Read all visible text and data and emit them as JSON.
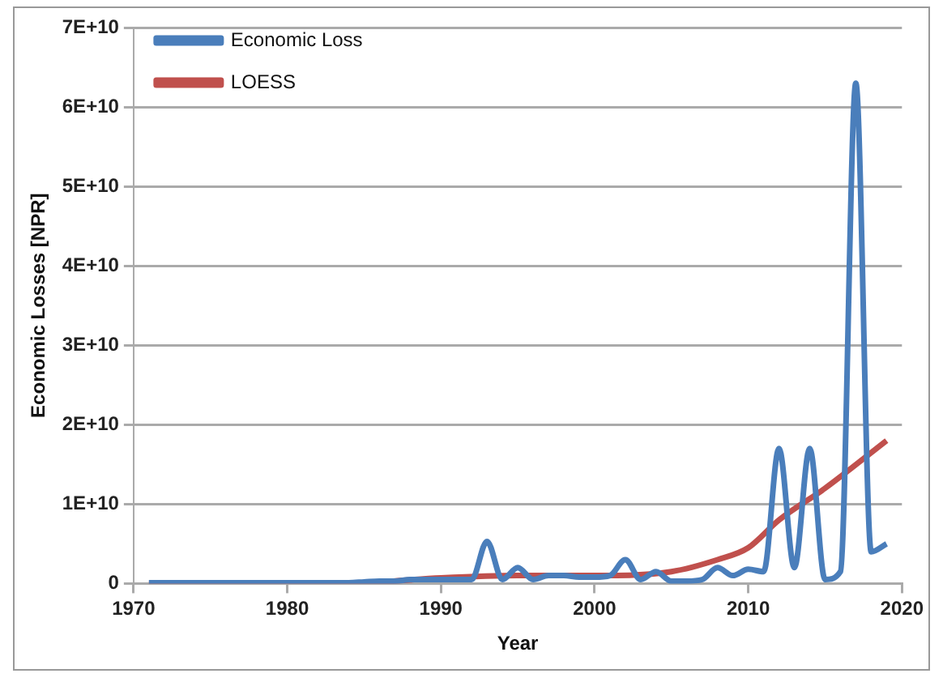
{
  "chart_data": {
    "type": "line",
    "xlabel": "Year",
    "ylabel": "Economic Losses [NPR]",
    "xlim": [
      1970,
      2020
    ],
    "xticks": [
      1970,
      1980,
      1990,
      2000,
      2010,
      2020
    ],
    "ylim": [
      0,
      70000000000
    ],
    "yticks": [
      0,
      {
        "value": 10000000000,
        "label": "1E+10"
      },
      {
        "value": 20000000000,
        "label": "2E+10"
      },
      {
        "value": 30000000000,
        "label": "3E+10"
      },
      {
        "value": 40000000000,
        "label": "4E+10"
      },
      {
        "value": 50000000000,
        "label": "5E+10"
      },
      {
        "value": 60000000000,
        "label": "6E+10"
      },
      {
        "value": 70000000000,
        "label": "7E+10"
      }
    ],
    "grid": "y",
    "legend": "top left",
    "marker": "none",
    "series": [
      {
        "name": "Economic Loss",
        "color": "#4a7ebb",
        "x": [
          1971,
          1972,
          1973,
          1974,
          1975,
          1976,
          1977,
          1978,
          1979,
          1980,
          1981,
          1982,
          1983,
          1984,
          1985,
          1986,
          1987,
          1988,
          1989,
          1990,
          1991,
          1992,
          1993,
          1994,
          1995,
          1996,
          1997,
          1998,
          1999,
          2000,
          2001,
          2002,
          2003,
          2004,
          2005,
          2006,
          2007,
          2008,
          2009,
          2010,
          2011,
          2012,
          2013,
          2014,
          2015,
          2016,
          2017,
          2018,
          2019
        ],
        "values": [
          100000000,
          100000000,
          100000000,
          100000000,
          100000000,
          100000000,
          100000000,
          100000000,
          100000000,
          100000000,
          100000000,
          100000000,
          100000000,
          100000000,
          200000000,
          300000000,
          300000000,
          500000000,
          500000000,
          500000000,
          500000000,
          500000000,
          5300000000,
          500000000,
          2000000000,
          500000000,
          1000000000,
          1000000000,
          800000000,
          800000000,
          1000000000,
          3000000000,
          500000000,
          1500000000,
          300000000,
          300000000,
          500000000,
          2000000000,
          1000000000,
          1800000000,
          1500000000,
          17000000000,
          2000000000,
          17000000000,
          500000000,
          1500000000,
          63000000000,
          4000000000,
          5000000000
        ]
      },
      {
        "name": "LOESS",
        "color": "#c0504d",
        "x": [
          1971,
          1980,
          1985,
          1990,
          1995,
          2000,
          2005,
          2008,
          2010,
          2012,
          2015,
          2019
        ],
        "values": [
          0,
          0,
          100000000,
          700000000,
          1000000000,
          1000000000,
          1500000000,
          3000000000,
          4500000000,
          8000000000,
          12000000000,
          18000000000
        ]
      }
    ]
  }
}
